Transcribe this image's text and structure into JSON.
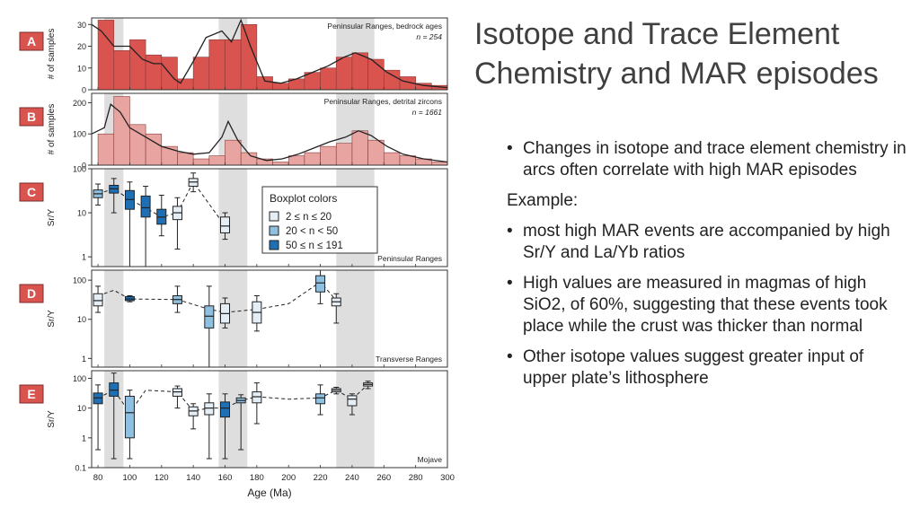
{
  "slide": {
    "title": "Isotope and Trace Element Chemistry and MAR episodes",
    "bullets_top": [
      "Changes in isotope and trace element chemistry in arcs often correlate with high MAR episodes"
    ],
    "example_label": "Example:",
    "bullets_bottom": [
      "most high MAR events are accompanied by high Sr/Y and La/Yb ratios",
      "High values are measured in magmas of high SiO2, of 60%, suggesting that these events took place while the crust was thicker than normal",
      "Other isotope values suggest greater input of upper plate’s lithosphere"
    ],
    "bullet_glyph": "•"
  },
  "colors": {
    "bar_a": "#d9534f",
    "bar_b": "#e8a4a0",
    "shade": "#d3d3d3",
    "box_light": "#e6eef5",
    "box_mid": "#8fc0e0",
    "box_dark": "#1f6fb5"
  },
  "chart_data": [
    {
      "type": "bar",
      "panel_letter": "A",
      "title": "Peninsular Ranges, bedrock ages",
      "n_label": "n = 254",
      "ylabel": "# of samples",
      "ylim": [
        0,
        33
      ],
      "yticks": [
        0,
        10,
        20,
        30
      ],
      "xlim": [
        76,
        300
      ],
      "bin_width": 10,
      "bin_starts": [
        80,
        90,
        100,
        110,
        120,
        130,
        140,
        150,
        160,
        170,
        180,
        190,
        200,
        210,
        220,
        230,
        240,
        250,
        260,
        270,
        280,
        290
      ],
      "values": [
        32,
        18,
        23,
        16,
        15,
        5,
        15,
        23,
        23,
        30,
        6,
        3,
        5,
        8,
        10,
        15,
        17,
        14,
        9,
        6,
        3,
        2
      ],
      "curve": [
        [
          76,
          30
        ],
        [
          82,
          27
        ],
        [
          90,
          20
        ],
        [
          100,
          20
        ],
        [
          108,
          14
        ],
        [
          115,
          12
        ],
        [
          120,
          12
        ],
        [
          128,
          5
        ],
        [
          132,
          3
        ],
        [
          140,
          13
        ],
        [
          148,
          24
        ],
        [
          158,
          27
        ],
        [
          164,
          22
        ],
        [
          170,
          32
        ],
        [
          176,
          20
        ],
        [
          185,
          4
        ],
        [
          195,
          3
        ],
        [
          205,
          5
        ],
        [
          215,
          8
        ],
        [
          225,
          11
        ],
        [
          235,
          15
        ],
        [
          242,
          17
        ],
        [
          252,
          14
        ],
        [
          262,
          8
        ],
        [
          272,
          4
        ],
        [
          285,
          2
        ],
        [
          300,
          1
        ]
      ]
    },
    {
      "type": "bar",
      "panel_letter": "B",
      "title": "Peninsular Ranges, detrital zircons",
      "n_label": "n = 1661",
      "ylabel": "# of samples",
      "ylim": [
        0,
        230
      ],
      "yticks": [
        0,
        100,
        200
      ],
      "xlim": [
        76,
        300
      ],
      "bin_width": 10,
      "bin_starts": [
        80,
        90,
        100,
        110,
        120,
        130,
        140,
        150,
        160,
        170,
        180,
        190,
        200,
        210,
        220,
        230,
        240,
        250,
        260,
        270,
        280,
        290
      ],
      "values": [
        100,
        220,
        130,
        100,
        60,
        40,
        20,
        30,
        80,
        40,
        20,
        10,
        30,
        40,
        60,
        70,
        110,
        80,
        40,
        30,
        20,
        10
      ],
      "curve": [
        [
          76,
          100
        ],
        [
          84,
          120
        ],
        [
          88,
          195
        ],
        [
          94,
          170
        ],
        [
          100,
          120
        ],
        [
          110,
          90
        ],
        [
          120,
          60
        ],
        [
          130,
          45
        ],
        [
          140,
          35
        ],
        [
          150,
          40
        ],
        [
          158,
          90
        ],
        [
          162,
          140
        ],
        [
          168,
          80
        ],
        [
          176,
          30
        ],
        [
          186,
          15
        ],
        [
          196,
          20
        ],
        [
          206,
          35
        ],
        [
          216,
          55
        ],
        [
          226,
          75
        ],
        [
          236,
          90
        ],
        [
          244,
          110
        ],
        [
          252,
          95
        ],
        [
          262,
          60
        ],
        [
          272,
          35
        ],
        [
          285,
          20
        ],
        [
          300,
          10
        ]
      ]
    },
    {
      "type": "boxplot",
      "panel_letter": "C",
      "title": "Peninsular Ranges",
      "ylabel": "Sr/Y",
      "ylim": [
        0.6,
        100
      ],
      "log_scale": true,
      "yticks": [
        1,
        10,
        100
      ],
      "xlim": [
        76,
        300
      ],
      "legend": {
        "title": "Boxplot colors",
        "items": [
          {
            "label": "2 ≤ n ≤ 20",
            "color": "#e6eef5"
          },
          {
            "label": "20 < n < 50",
            "color": "#8fc0e0"
          },
          {
            "label": "50 ≤ n ≤ 191",
            "color": "#1f6fb5"
          }
        ]
      },
      "boxes": [
        {
          "x": 80,
          "q1": 22,
          "med": 27,
          "q3": 33,
          "lo": 15,
          "hi": 45,
          "cls": 2
        },
        {
          "x": 90,
          "q1": 28,
          "med": 35,
          "q3": 42,
          "lo": 10,
          "hi": 60,
          "cls": 3
        },
        {
          "x": 100,
          "q1": 12,
          "med": 20,
          "q3": 32,
          "lo": 0.6,
          "hi": 50,
          "cls": 3
        },
        {
          "x": 110,
          "q1": 8,
          "med": 13,
          "q3": 24,
          "lo": 0.5,
          "hi": 40,
          "cls": 3
        },
        {
          "x": 120,
          "q1": 5.5,
          "med": 8,
          "q3": 12,
          "lo": 3,
          "hi": 25,
          "cls": 3
        },
        {
          "x": 130,
          "q1": 7,
          "med": 10,
          "q3": 14,
          "lo": 1.5,
          "hi": 22,
          "cls": 1
        },
        {
          "x": 140,
          "q1": 40,
          "med": 50,
          "q3": 60,
          "lo": 30,
          "hi": 80,
          "cls": 1
        },
        {
          "x": 160,
          "q1": 3.5,
          "med": 5,
          "q3": 8,
          "lo": 2.5,
          "hi": 10,
          "cls": 1
        }
      ]
    },
    {
      "type": "boxplot",
      "panel_letter": "D",
      "title": "Transverse Ranges",
      "ylabel": "Sr/Y",
      "ylim": [
        0.6,
        180
      ],
      "log_scale": true,
      "yticks": [
        1,
        10,
        100
      ],
      "xlim": [
        76,
        300
      ],
      "boxes": [
        {
          "x": 80,
          "q1": 22,
          "med": 30,
          "q3": 45,
          "lo": 15,
          "hi": 70,
          "cls": 1
        },
        {
          "x": 100,
          "q1": 30,
          "med": 33,
          "q3": 38,
          "lo": 28,
          "hi": 40,
          "cls": 3
        },
        {
          "x": 130,
          "q1": 25,
          "med": 32,
          "q3": 40,
          "lo": 15,
          "hi": 70,
          "cls": 2
        },
        {
          "x": 150,
          "q1": 6,
          "med": 12,
          "q3": 22,
          "lo": 0.4,
          "hi": 70,
          "cls": 2
        },
        {
          "x": 160,
          "q1": 8,
          "med": 14,
          "q3": 25,
          "lo": 6,
          "hi": 35,
          "cls": 1
        },
        {
          "x": 180,
          "q1": 8,
          "med": 15,
          "q3": 28,
          "lo": 5,
          "hi": 40,
          "cls": 1
        },
        {
          "x": 220,
          "q1": 50,
          "med": 85,
          "q3": 130,
          "lo": 25,
          "hi": 280,
          "cls": 2
        },
        {
          "x": 230,
          "q1": 22,
          "med": 28,
          "q3": 35,
          "lo": 8,
          "hi": 45,
          "cls": 1
        }
      ],
      "trend_points": [
        [
          80,
          40
        ],
        [
          90,
          55
        ],
        [
          100,
          33
        ],
        [
          130,
          32
        ],
        [
          150,
          18
        ],
        [
          160,
          15
        ],
        [
          180,
          18
        ],
        [
          200,
          25
        ],
        [
          220,
          90
        ],
        [
          230,
          30
        ]
      ]
    },
    {
      "type": "boxplot",
      "panel_letter": "E",
      "title": "Mojave",
      "ylabel": "Sr/Y",
      "ylim": [
        0.1,
        180
      ],
      "log_scale": true,
      "yticks": [
        0.1,
        1,
        10,
        100
      ],
      "xtick_values": [
        80,
        100,
        120,
        140,
        160,
        180,
        200,
        220,
        240,
        260,
        280,
        300
      ],
      "xlabel": "Age (Ma)",
      "xlim": [
        76,
        300
      ],
      "boxes": [
        {
          "x": 80,
          "q1": 14,
          "med": 22,
          "q3": 32,
          "lo": 0.4,
          "hi": 60,
          "cls": 3
        },
        {
          "x": 90,
          "q1": 25,
          "med": 40,
          "q3": 70,
          "lo": 0.2,
          "hi": 150,
          "cls": 3
        },
        {
          "x": 100,
          "q1": 1,
          "med": 7,
          "q3": 25,
          "lo": 0.2,
          "hi": 40,
          "cls": 2
        },
        {
          "x": 130,
          "q1": 25,
          "med": 35,
          "q3": 45,
          "lo": 10,
          "hi": 55,
          "cls": 1
        },
        {
          "x": 140,
          "q1": 5.5,
          "med": 8,
          "q3": 11,
          "lo": 2,
          "hi": 14,
          "cls": 1
        },
        {
          "x": 150,
          "q1": 6,
          "med": 10,
          "q3": 15,
          "lo": 0.2,
          "hi": 30,
          "cls": 1
        },
        {
          "x": 160,
          "q1": 5,
          "med": 10,
          "q3": 16,
          "lo": 0.2,
          "hi": 30,
          "cls": 3
        },
        {
          "x": 170,
          "q1": 15,
          "med": 18,
          "q3": 22,
          "lo": 0.4,
          "hi": 28,
          "cls": 2
        },
        {
          "x": 180,
          "q1": 15,
          "med": 24,
          "q3": 35,
          "lo": 3,
          "hi": 70,
          "cls": 1
        },
        {
          "x": 220,
          "q1": 14,
          "med": 22,
          "q3": 30,
          "lo": 6,
          "hi": 60,
          "cls": 2
        },
        {
          "x": 230,
          "q1": 35,
          "med": 40,
          "q3": 45,
          "lo": 30,
          "hi": 50,
          "cls": 1
        },
        {
          "x": 240,
          "q1": 12,
          "med": 20,
          "q3": 26,
          "lo": 6,
          "hi": 30,
          "cls": 1
        },
        {
          "x": 250,
          "q1": 55,
          "med": 62,
          "q3": 70,
          "lo": 45,
          "hi": 80,
          "cls": 1
        }
      ],
      "trend_points": [
        [
          80,
          22
        ],
        [
          90,
          40
        ],
        [
          100,
          7
        ],
        [
          110,
          40
        ],
        [
          130,
          35
        ],
        [
          140,
          8
        ],
        [
          150,
          10
        ],
        [
          160,
          10
        ],
        [
          170,
          18
        ],
        [
          180,
          24
        ],
        [
          200,
          20
        ],
        [
          220,
          22
        ],
        [
          230,
          40
        ],
        [
          240,
          20
        ],
        [
          250,
          62
        ]
      ]
    }
  ],
  "shaded_bands": [
    [
      84,
      96
    ],
    [
      156,
      174
    ],
    [
      230,
      254
    ]
  ]
}
